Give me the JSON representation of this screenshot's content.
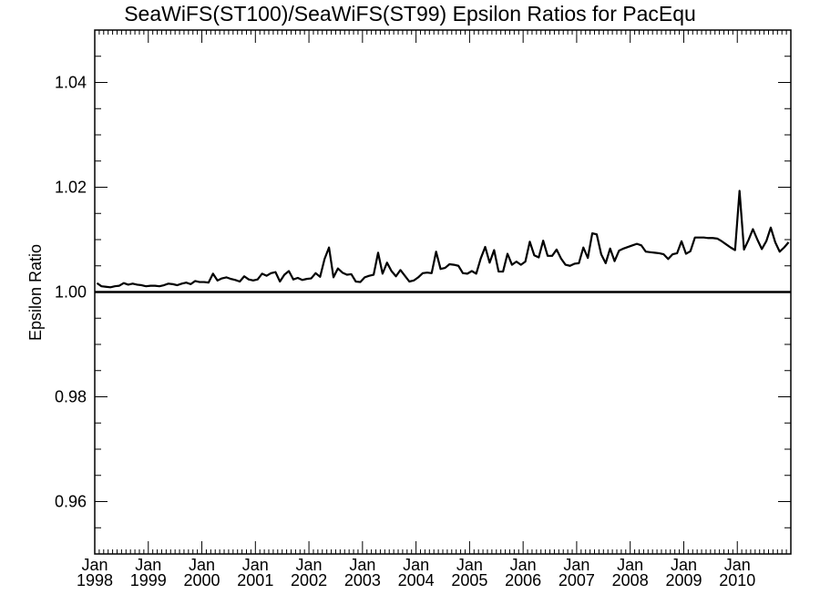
{
  "chart_data": {
    "type": "line",
    "title": "SeaWiFS(ST100)/SeaWiFS(ST99)  Epsilon Ratios for PacEqu",
    "xlabel": "",
    "ylabel": "Epsilon Ratio",
    "xlim": [
      "1998-01",
      "2010-12"
    ],
    "ylim": [
      0.95,
      1.05
    ],
    "y_ticks": [
      0.96,
      0.98,
      1.0,
      1.02,
      1.04
    ],
    "y_tick_labels": [
      "0.96",
      "0.98",
      "1.00",
      "1.02",
      "1.04"
    ],
    "x_ticks": [
      "1998-01",
      "1999-01",
      "2000-01",
      "2001-01",
      "2002-01",
      "2003-01",
      "2004-01",
      "2005-01",
      "2006-01",
      "2007-01",
      "2008-01",
      "2009-01",
      "2010-01"
    ],
    "x_tick_labels": [
      {
        "month": "Jan",
        "year": "1998"
      },
      {
        "month": "Jan",
        "year": "1999"
      },
      {
        "month": "Jan",
        "year": "2000"
      },
      {
        "month": "Jan",
        "year": "2001"
      },
      {
        "month": "Jan",
        "year": "2002"
      },
      {
        "month": "Jan",
        "year": "2003"
      },
      {
        "month": "Jan",
        "year": "2004"
      },
      {
        "month": "Jan",
        "year": "2005"
      },
      {
        "month": "Jan",
        "year": "2006"
      },
      {
        "month": "Jan",
        "year": "2007"
      },
      {
        "month": "Jan",
        "year": "2008"
      },
      {
        "month": "Jan",
        "year": "2009"
      },
      {
        "month": "Jan",
        "year": "2010"
      }
    ],
    "reference_line": {
      "y": 1.0
    },
    "grid": false,
    "series": [
      {
        "x": [
          "1998-01",
          "1998-02",
          "1998-03",
          "1998-04",
          "1998-05",
          "1998-06",
          "1998-07",
          "1998-08",
          "1998-09",
          "1998-10",
          "1998-11",
          "1998-12",
          "1999-01",
          "1999-02",
          "1999-03",
          "1999-04",
          "1999-05",
          "1999-06",
          "1999-07",
          "1999-08",
          "1999-09",
          "1999-10",
          "1999-11",
          "1999-12",
          "2000-01",
          "2000-02",
          "2000-03",
          "2000-04",
          "2000-05",
          "2000-06",
          "2000-07",
          "2000-08",
          "2000-09",
          "2000-10",
          "2000-11",
          "2000-12",
          "2001-01",
          "2001-02",
          "2001-03",
          "2001-04",
          "2001-05",
          "2001-06",
          "2001-07",
          "2001-08",
          "2001-09",
          "2001-10",
          "2001-11",
          "2001-12",
          "2002-01",
          "2002-02",
          "2002-03",
          "2002-04",
          "2002-05",
          "2002-06",
          "2002-07",
          "2002-08",
          "2002-09",
          "2002-10",
          "2002-11",
          "2002-12",
          "2003-01",
          "2003-02",
          "2003-03",
          "2003-04",
          "2003-05",
          "2003-06",
          "2003-07",
          "2003-08",
          "2003-09",
          "2003-10",
          "2003-11",
          "2003-12",
          "2004-01",
          "2004-02",
          "2004-03",
          "2004-04",
          "2004-05",
          "2004-06",
          "2004-07",
          "2004-08",
          "2004-09",
          "2004-10",
          "2004-11",
          "2004-12",
          "2005-01",
          "2005-02",
          "2005-03",
          "2005-04",
          "2005-05",
          "2005-06",
          "2005-07",
          "2005-08",
          "2005-09",
          "2005-10",
          "2005-11",
          "2005-12",
          "2006-01",
          "2006-02",
          "2006-03",
          "2006-04",
          "2006-05",
          "2006-06",
          "2006-07",
          "2006-08",
          "2006-09",
          "2006-10",
          "2006-11",
          "2006-12",
          "2007-01",
          "2007-02",
          "2007-03",
          "2007-04",
          "2007-05",
          "2007-06",
          "2007-07",
          "2007-08",
          "2007-09",
          "2007-10",
          "2007-11",
          "2007-12",
          "2008-01",
          "2008-02",
          "2008-03",
          "2008-04",
          "2008-05",
          "2008-06",
          "2008-07",
          "2008-08",
          "2008-09",
          "2008-10",
          "2008-11",
          "2008-12",
          "2009-01",
          "2009-02",
          "2009-03",
          "2009-04",
          "2009-05",
          "2009-06",
          "2009-07",
          "2009-08",
          "2009-09",
          "2009-10",
          "2009-11",
          "2009-12",
          "2010-01",
          "2010-02",
          "2010-03",
          "2010-04",
          "2010-05",
          "2010-06",
          "2010-07",
          "2010-08",
          "2010-09",
          "2010-10",
          "2010-11",
          "2010-12"
        ],
        "y": [
          1.0017,
          1.0011,
          1.001,
          1.0009,
          1.0011,
          1.0012,
          1.0017,
          1.0014,
          1.0016,
          1.0014,
          1.0013,
          1.0011,
          1.0012,
          1.0012,
          1.0011,
          1.0013,
          1.0016,
          1.0015,
          1.0013,
          1.0016,
          1.0018,
          1.0015,
          1.0021,
          1.0019,
          1.0019,
          1.0018,
          1.0035,
          1.0022,
          1.0026,
          1.0028,
          1.0025,
          1.0023,
          1.002,
          1.003,
          1.0024,
          1.0022,
          1.0024,
          1.0035,
          1.0031,
          1.0036,
          1.0038,
          1.002,
          1.0033,
          1.004,
          1.0024,
          1.0027,
          1.0023,
          1.0025,
          1.0026,
          1.0036,
          1.0029,
          1.0063,
          1.0085,
          1.0028,
          1.0045,
          1.0037,
          1.0033,
          1.0034,
          1.002,
          1.0019,
          1.0028,
          1.0031,
          1.0033,
          1.0075,
          1.0035,
          1.0056,
          1.004,
          1.003,
          1.0042,
          1.0031,
          1.002,
          1.0022,
          1.0028,
          1.0036,
          1.0037,
          1.0036,
          1.0077,
          1.0044,
          1.0046,
          1.0053,
          1.0052,
          1.005,
          1.0036,
          1.0035,
          1.004,
          1.0035,
          1.0064,
          1.0086,
          1.0056,
          1.008,
          1.0039,
          1.0039,
          1.0073,
          1.0052,
          1.0058,
          1.0052,
          1.0058,
          1.0096,
          1.007,
          1.0066,
          1.0098,
          1.0069,
          1.0069,
          1.0081,
          1.0064,
          1.0052,
          1.005,
          1.0054,
          1.0055,
          1.0085,
          1.0065,
          1.0112,
          1.011,
          1.0072,
          1.0055,
          1.0083,
          1.0059,
          1.0079,
          1.0083,
          1.0086,
          1.0089,
          1.0092,
          1.0089,
          1.0077,
          1.0076,
          1.0075,
          1.0074,
          1.0072,
          1.0063,
          1.0072,
          1.0074,
          1.0097,
          1.0073,
          1.0078,
          1.0104,
          1.0104,
          1.0104,
          1.0103,
          1.0103,
          1.0102,
          1.0097,
          1.0091,
          1.0085,
          1.008,
          1.0193,
          1.0081,
          1.0099,
          1.012,
          1.01,
          1.0082,
          1.0097,
          1.0123,
          1.0095,
          1.0077,
          1.0085,
          1.0095
        ]
      }
    ]
  }
}
